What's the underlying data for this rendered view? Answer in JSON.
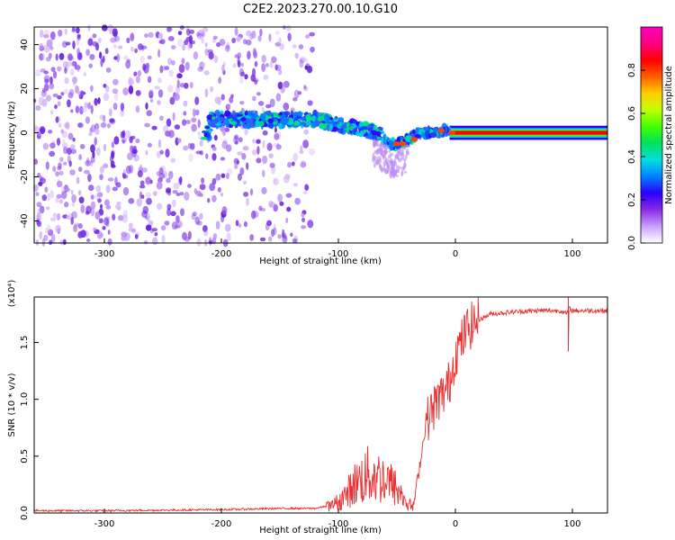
{
  "title": "C2E2.2023.270.00.10.G10",
  "chart_data": [
    {
      "type": "heatmap",
      "xlabel": "Height of straight line (km)",
      "ylabel": "Frequency (Hz)",
      "xlim": [
        -360,
        130
      ],
      "ylim": [
        -50,
        48
      ],
      "xticks": [
        -300,
        -200,
        -100,
        0,
        100
      ],
      "yticks": [
        -40,
        -20,
        0,
        20,
        40
      ],
      "noise_region_x": [
        -360,
        -120
      ],
      "signal_track": {
        "x": [
          -210,
          -180,
          -150,
          -120,
          -100,
          -80,
          -65,
          -55,
          -48,
          -40,
          -30,
          -20,
          -10,
          0,
          50,
          100,
          130
        ],
        "y": [
          6,
          6,
          6,
          6,
          4,
          2,
          -1,
          -5,
          -5,
          -3,
          0,
          0,
          1,
          0,
          0,
          0,
          0
        ]
      },
      "colorbar": {
        "label": "Normalized spectral amplitude",
        "range": [
          0.0,
          1.0
        ],
        "ticks": [
          0.0,
          0.2,
          0.4,
          0.6,
          0.8
        ],
        "tick_labels": [
          "0.0",
          "0.2",
          "0.4",
          "0.6",
          "0.8"
        ],
        "colors": [
          "#ffffff",
          "#c9a0ff",
          "#8a2be2",
          "#2a00ff",
          "#0080ff",
          "#00e0e0",
          "#00e060",
          "#40ff00",
          "#c0ff00",
          "#ffd000",
          "#ff6000",
          "#ff0000",
          "#ff0080",
          "#ff00c0"
        ]
      },
      "grid": false
    },
    {
      "type": "line",
      "xlabel": "Height of straight line (km)",
      "ylabel": "SNR (10 * v/v)",
      "y_multiplier_label": "(x10⁴)",
      "xlim": [
        -360,
        130
      ],
      "ylim": [
        0,
        1.9
      ],
      "xticks": [
        -300,
        -200,
        -100,
        0,
        100
      ],
      "yticks": [
        0.0,
        0.5,
        1.0,
        1.5
      ],
      "ytick_labels": [
        "0.0",
        "0.5",
        "1.0",
        "1.5"
      ],
      "series": [
        {
          "color": "#e83030",
          "x": [
            -360,
            -300,
            -200,
            -150,
            -120,
            -105,
            -95,
            -85,
            -75,
            -65,
            -58,
            -50,
            -42,
            -36,
            -30,
            -25,
            -20,
            -15,
            -10,
            -5,
            0,
            5,
            10,
            20,
            30,
            50,
            70,
            90,
            95,
            97,
            100,
            110,
            130
          ],
          "y": [
            0.02,
            0.02,
            0.03,
            0.04,
            0.04,
            0.07,
            0.15,
            0.28,
            0.35,
            0.33,
            0.3,
            0.22,
            0.1,
            0.05,
            0.45,
            0.8,
            0.9,
            1.0,
            1.05,
            1.15,
            1.4,
            1.5,
            1.62,
            1.7,
            1.75,
            1.77,
            1.78,
            1.78,
            1.75,
            1.8,
            1.78,
            1.78,
            1.78
          ]
        }
      ],
      "grid": false
    }
  ]
}
